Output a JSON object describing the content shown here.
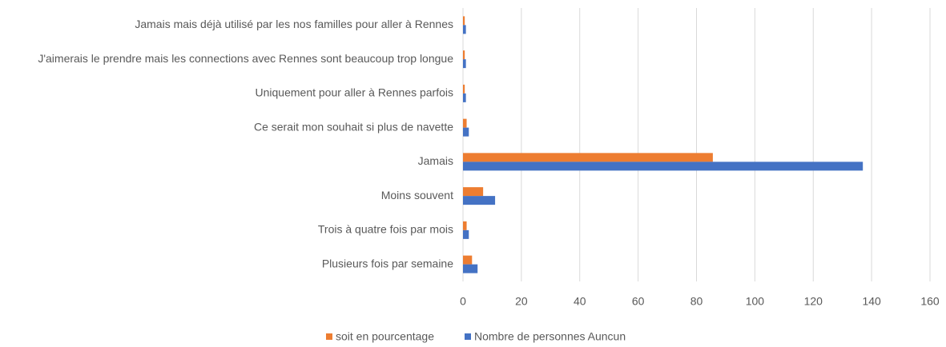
{
  "chart_data": {
    "type": "hbar",
    "categories": [
      "Jamais mais déjà utilisé par les nos familles pour aller à Rennes",
      "J'aimerais le prendre mais les connections avec Rennes sont beaucoup trop longue",
      "Uniquement pour aller à Rennes parfois",
      "Ce serait mon souhait si plus de navette",
      "Jamais",
      "Moins souvent",
      "Trois à quatre fois par mois",
      "Plusieurs fois par semaine"
    ],
    "series": [
      {
        "name": "soit en pourcentage",
        "color": "#ed7d31",
        "values": [
          0.6,
          0.6,
          0.6,
          1.25,
          85.6,
          6.9,
          1.25,
          3.1
        ]
      },
      {
        "name": "Nombre de personnes Auncun",
        "color": "#4472c4",
        "values": [
          1,
          1,
          1,
          2,
          137,
          11,
          2,
          5
        ]
      }
    ],
    "xlim": [
      0,
      160
    ],
    "xticks": [
      0,
      20,
      40,
      60,
      80,
      100,
      120,
      140,
      160
    ],
    "grid": true,
    "legend": "bottom"
  }
}
